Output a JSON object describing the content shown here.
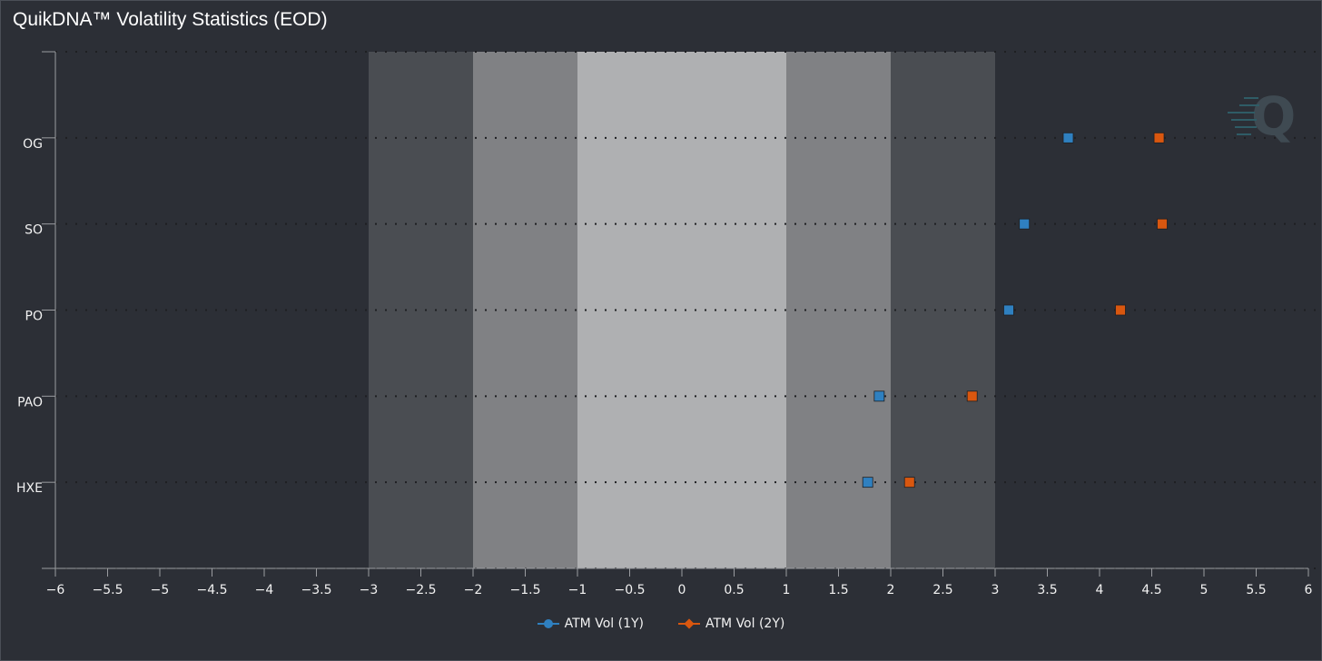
{
  "title": "QuikDNA™ Volatility Statistics (EOD)",
  "chart_data": {
    "type": "scatter",
    "title": "QuikDNA™ Volatility Statistics (EOD)",
    "orientation": "horizontal",
    "categories": [
      "OG",
      "SO",
      "PO",
      "PAO",
      "HXE"
    ],
    "xlim": [
      -6,
      6
    ],
    "x_ticks": [
      "−6",
      "−5.5",
      "−5",
      "−4.5",
      "−4",
      "−3.5",
      "−3",
      "−2.5",
      "−2",
      "−1.5",
      "−1",
      "−0.5",
      "0",
      "0.5",
      "1",
      "1.5",
      "2",
      "2.5",
      "3",
      "3.5",
      "4",
      "4.5",
      "5",
      "5.5",
      "6"
    ],
    "bands": [
      {
        "from": -3,
        "to": -2,
        "color": "#4a4d52"
      },
      {
        "from": -2,
        "to": -1,
        "color": "#808184"
      },
      {
        "from": -1,
        "to": 1,
        "color": "#afb0b2"
      },
      {
        "from": 1,
        "to": 2,
        "color": "#808184"
      },
      {
        "from": 2,
        "to": 3,
        "color": "#4a4d52"
      }
    ],
    "series": [
      {
        "name": "ATM Vol (1Y)",
        "color": "#2f80c0",
        "legend_marker": "circle",
        "values": [
          3.7,
          3.28,
          3.13,
          1.89,
          1.78
        ]
      },
      {
        "name": "ATM Vol (2Y)",
        "color": "#d9570f",
        "legend_marker": "diamond",
        "values": [
          4.57,
          4.6,
          4.2,
          2.78,
          2.18
        ]
      }
    ],
    "grid": true,
    "legend_position": "bottom-center"
  }
}
